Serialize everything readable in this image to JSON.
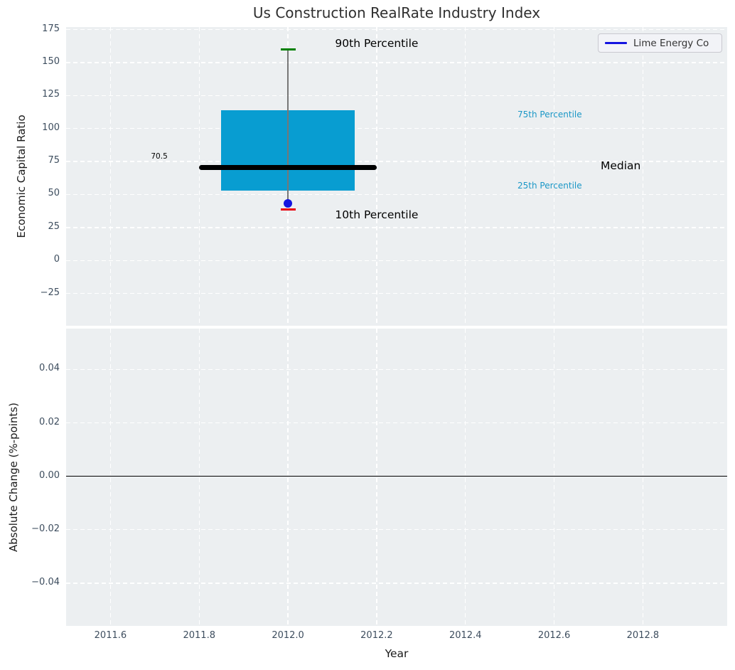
{
  "title": "Us Construction RealRate Industry Index",
  "legend": {
    "label": "Lime Energy Co",
    "line_color": "#1414e0"
  },
  "colors": {
    "axes_bg": "#eceff1",
    "grid": "#ffffff",
    "tick_label": "#3d4d5e",
    "box_fill": "#089dd1",
    "median_line": "#000000",
    "p90_cap": "#008000",
    "p10_cap": "#e8000b",
    "company_point": "#1414e0",
    "whisker": "#777777",
    "annotation_blue": "#1b97c6",
    "annotation_black": "#000000",
    "zero_line": "#000000"
  },
  "chart_data": [
    {
      "type": "box",
      "title": "Us Construction RealRate Industry Index",
      "ylabel": "Economic Capital Ratio",
      "xlim": [
        2011.5,
        2012.99
      ],
      "ylim": [
        -49.5,
        177
      ],
      "grid": true,
      "legend_position": "upper right",
      "xticks": [
        {
          "v": 2011.6,
          "label": "2011.6"
        },
        {
          "v": 2011.8,
          "label": "2011.8"
        },
        {
          "v": 2012.0,
          "label": "2012.0"
        },
        {
          "v": 2012.2,
          "label": "2012.2"
        },
        {
          "v": 2012.4,
          "label": "2012.4"
        },
        {
          "v": 2012.6,
          "label": "2012.6"
        },
        {
          "v": 2012.8,
          "label": "2012.8"
        }
      ],
      "yticks": [
        {
          "v": 175,
          "label": "175"
        },
        {
          "v": 150,
          "label": "150"
        },
        {
          "v": 125,
          "label": "125"
        },
        {
          "v": 100,
          "label": "100"
        },
        {
          "v": 75,
          "label": "75"
        },
        {
          "v": 50,
          "label": "50"
        },
        {
          "v": 25,
          "label": "25"
        },
        {
          "v": 0,
          "label": "0"
        },
        {
          "v": -25,
          "label": "−25"
        }
      ],
      "series": [
        {
          "name": "Lime Energy Co",
          "x": 2012.0,
          "p90": 160,
          "p75": 114,
          "median": 70.5,
          "p25": 53,
          "p10": 38.5,
          "company_value": 43,
          "box_half_width": 0.15,
          "median_half_width": 0.2
        }
      ],
      "annotations": [
        {
          "id": "p90-label",
          "text": "90th Percentile",
          "x": 2012.2,
          "y": 164.5,
          "color": "#000000",
          "size": 15.5
        },
        {
          "id": "p75-label",
          "text": "75th Percentile",
          "x": 2012.59,
          "y": 110.8,
          "color": "#1b97c6",
          "size": 12
        },
        {
          "id": "median-label",
          "text": "Median",
          "x": 2012.75,
          "y": 71.6,
          "color": "#000000",
          "size": 15.5
        },
        {
          "id": "p25-label",
          "text": "25th Percentile",
          "x": 2012.59,
          "y": 57.0,
          "color": "#1b97c6",
          "size": 12
        },
        {
          "id": "p10-label",
          "text": "10th Percentile",
          "x": 2012.2,
          "y": 34.4,
          "color": "#000000",
          "size": 15.5
        },
        {
          "id": "median-value",
          "text": "70.5",
          "x": 2011.71,
          "y": 79.0,
          "color": "#000000",
          "size": 10.5
        }
      ]
    },
    {
      "type": "line",
      "ylabel": "Absolute Change (%-points)",
      "xlabel": "Year",
      "xlim": [
        2011.5,
        2012.99
      ],
      "ylim": [
        -0.056,
        0.0553
      ],
      "grid": true,
      "zero_line": 0.0,
      "xticks": [
        {
          "v": 2011.6,
          "label": "2011.6"
        },
        {
          "v": 2011.8,
          "label": "2011.8"
        },
        {
          "v": 2012.0,
          "label": "2012.0"
        },
        {
          "v": 2012.2,
          "label": "2012.2"
        },
        {
          "v": 2012.4,
          "label": "2012.4"
        },
        {
          "v": 2012.6,
          "label": "2012.6"
        },
        {
          "v": 2012.8,
          "label": "2012.8"
        }
      ],
      "yticks": [
        {
          "v": 0.04,
          "label": "0.04"
        },
        {
          "v": 0.02,
          "label": "0.02"
        },
        {
          "v": 0.0,
          "label": "0.00"
        },
        {
          "v": -0.02,
          "label": "−0.02"
        },
        {
          "v": -0.04,
          "label": "−0.04"
        }
      ],
      "series": []
    }
  ]
}
